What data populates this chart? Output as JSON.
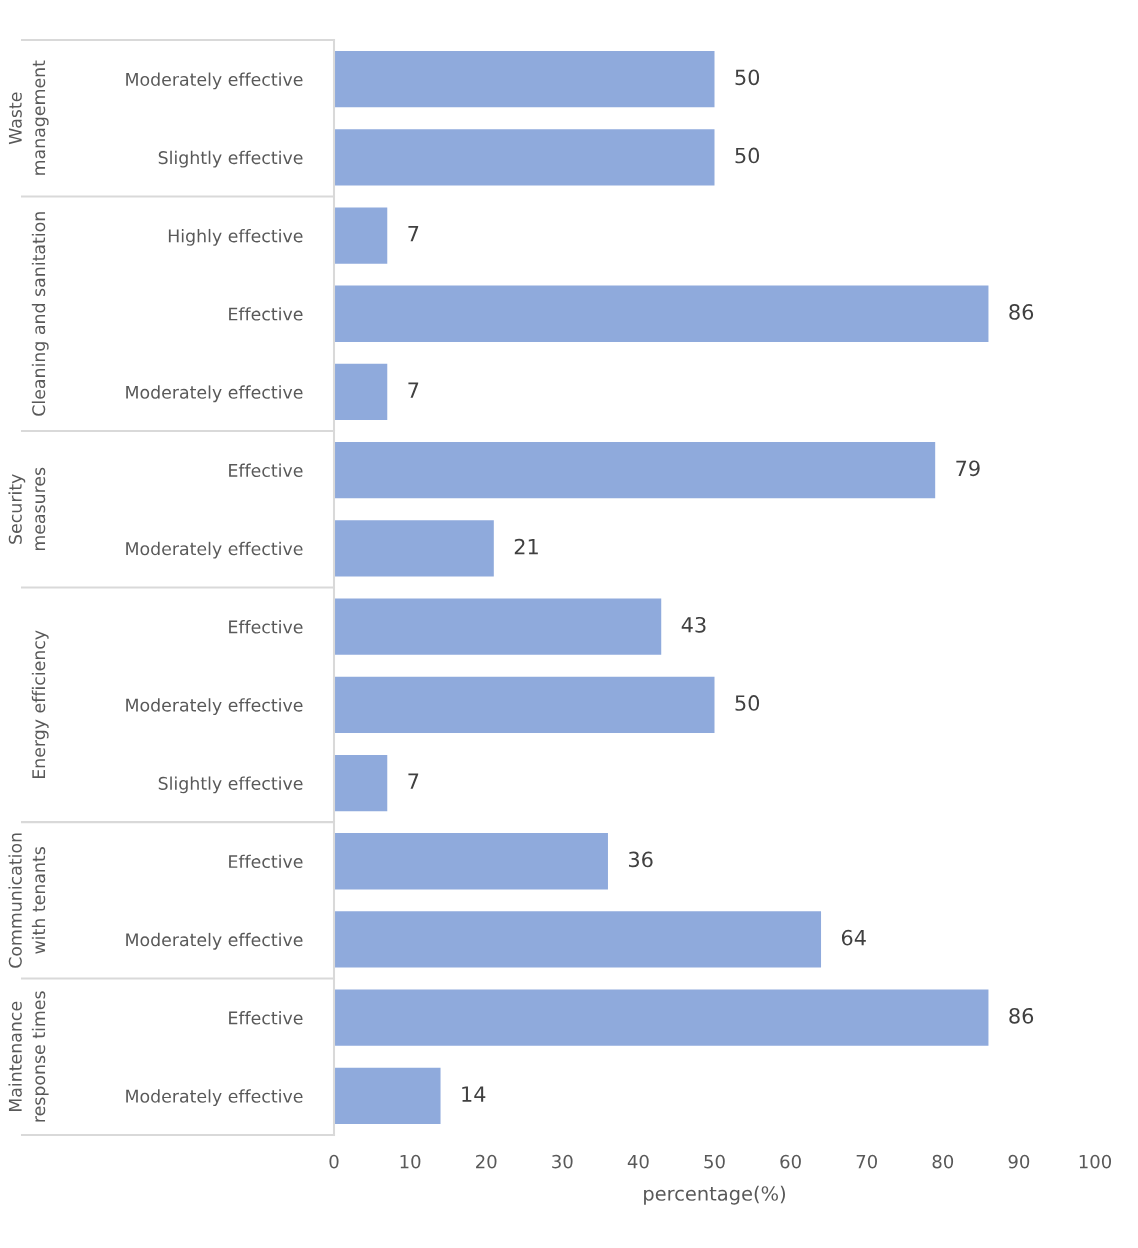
{
  "chart_data": [
    {
      "type": "bar",
      "orientation": "horizontal",
      "ylabel": "Waste\nmanagement",
      "color": "#8faadc",
      "xlim": [
        0,
        100
      ],
      "xticks": [
        0,
        10,
        20,
        30,
        40,
        50,
        60,
        70,
        80,
        90,
        100
      ],
      "tick_labels": "y",
      "data_labels": true,
      "categories": [
        "Moderately effective",
        "Slightly effective"
      ],
      "values": [
        50,
        50
      ]
    },
    {
      "type": "bar",
      "orientation": "horizontal",
      "ylabel": "Cleaning and sanitation",
      "color": "#8faadc",
      "xlim": [
        0,
        100
      ],
      "xticks": [
        0,
        10,
        20,
        30,
        40,
        50,
        60,
        70,
        80,
        90,
        100
      ],
      "tick_labels": "y",
      "data_labels": true,
      "categories": [
        "Highly effective",
        "Effective",
        "Moderately effective"
      ],
      "values": [
        7,
        86,
        7
      ]
    },
    {
      "type": "bar",
      "orientation": "horizontal",
      "ylabel": "Security\nmeasures",
      "color": "#8faadc",
      "xlim": [
        0,
        100
      ],
      "xticks": [
        0,
        10,
        20,
        30,
        40,
        50,
        60,
        70,
        80,
        90,
        100
      ],
      "tick_labels": "y",
      "data_labels": true,
      "categories": [
        "Effective",
        "Moderately effective"
      ],
      "values": [
        79,
        21
      ]
    },
    {
      "type": "bar",
      "orientation": "horizontal",
      "ylabel": "Energy efficiency",
      "color": "#8faadc",
      "xlim": [
        0,
        100
      ],
      "xticks": [
        0,
        10,
        20,
        30,
        40,
        50,
        60,
        70,
        80,
        90,
        100
      ],
      "tick_labels": "y",
      "data_labels": true,
      "categories": [
        "Effective",
        "Moderately effective",
        "Slightly effective"
      ],
      "values": [
        43,
        50,
        7
      ]
    },
    {
      "type": "bar",
      "orientation": "horizontal",
      "ylabel": "Communication\nwith tenants",
      "color": "#8faadc",
      "xlim": [
        0,
        100
      ],
      "xticks": [
        0,
        10,
        20,
        30,
        40,
        50,
        60,
        70,
        80,
        90,
        100
      ],
      "tick_labels": "y",
      "data_labels": true,
      "categories": [
        "Effective",
        "Moderately effective"
      ],
      "values": [
        36,
        64
      ]
    },
    {
      "type": "bar",
      "orientation": "horizontal",
      "ylabel": "Maintenance\nresponse times",
      "xlabel": "percentage(%)",
      "color": "#8faadc",
      "xlim": [
        0,
        100
      ],
      "xticks": [
        0,
        10,
        20,
        30,
        40,
        50,
        60,
        70,
        80,
        90,
        100
      ],
      "data_labels": true,
      "categories": [
        "Effective",
        "Moderately effective"
      ],
      "values": [
        86,
        14
      ]
    }
  ]
}
